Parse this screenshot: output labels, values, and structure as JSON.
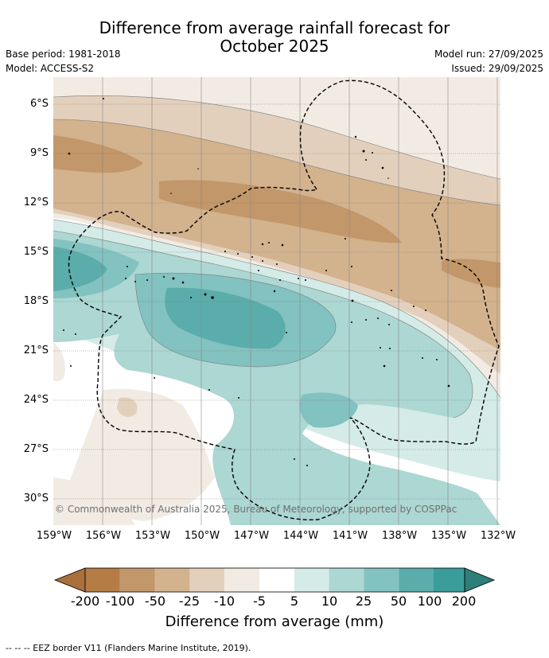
{
  "title_line1": "Difference from average rainfall forecast for",
  "title_line2": "October 2025",
  "base_period": "Base period: 1981-2018",
  "model": "Model: ACCESS-S2",
  "model_run": "Model run: 27/09/2025",
  "issued": "Issued: 29/09/2025",
  "copyright": "© Commonwealth of Australia 2025, Bureau of Meteorology, supported by COSPPac",
  "lat_labels": [
    "6°S",
    "9°S",
    "12°S",
    "15°S",
    "18°S",
    "21°S",
    "24°S",
    "27°S",
    "30°S"
  ],
  "lon_labels": [
    "159°W",
    "156°W",
    "153°W",
    "150°W",
    "147°W",
    "144°W",
    "141°W",
    "138°W",
    "135°W",
    "132°W"
  ],
  "colorbar": {
    "labels": [
      "-200",
      "-100",
      "-50",
      "-25",
      "-10",
      "-5",
      "5",
      "10",
      "25",
      "50",
      "100",
      "200"
    ],
    "colors": [
      "#a9703c",
      "#b57c45",
      "#c29769",
      "#d3b28e",
      "#e3d0bc",
      "#f1ebe3",
      "#ffffff",
      "#d4ebe8",
      "#acd7d3",
      "#82c2c0",
      "#5aadab",
      "#3a9d99",
      "#2e7f7a"
    ],
    "title": "Difference from average (mm)"
  },
  "footer": "--  --  -- EEZ border V11 (Flanders Marine Institute, 2019)."
}
